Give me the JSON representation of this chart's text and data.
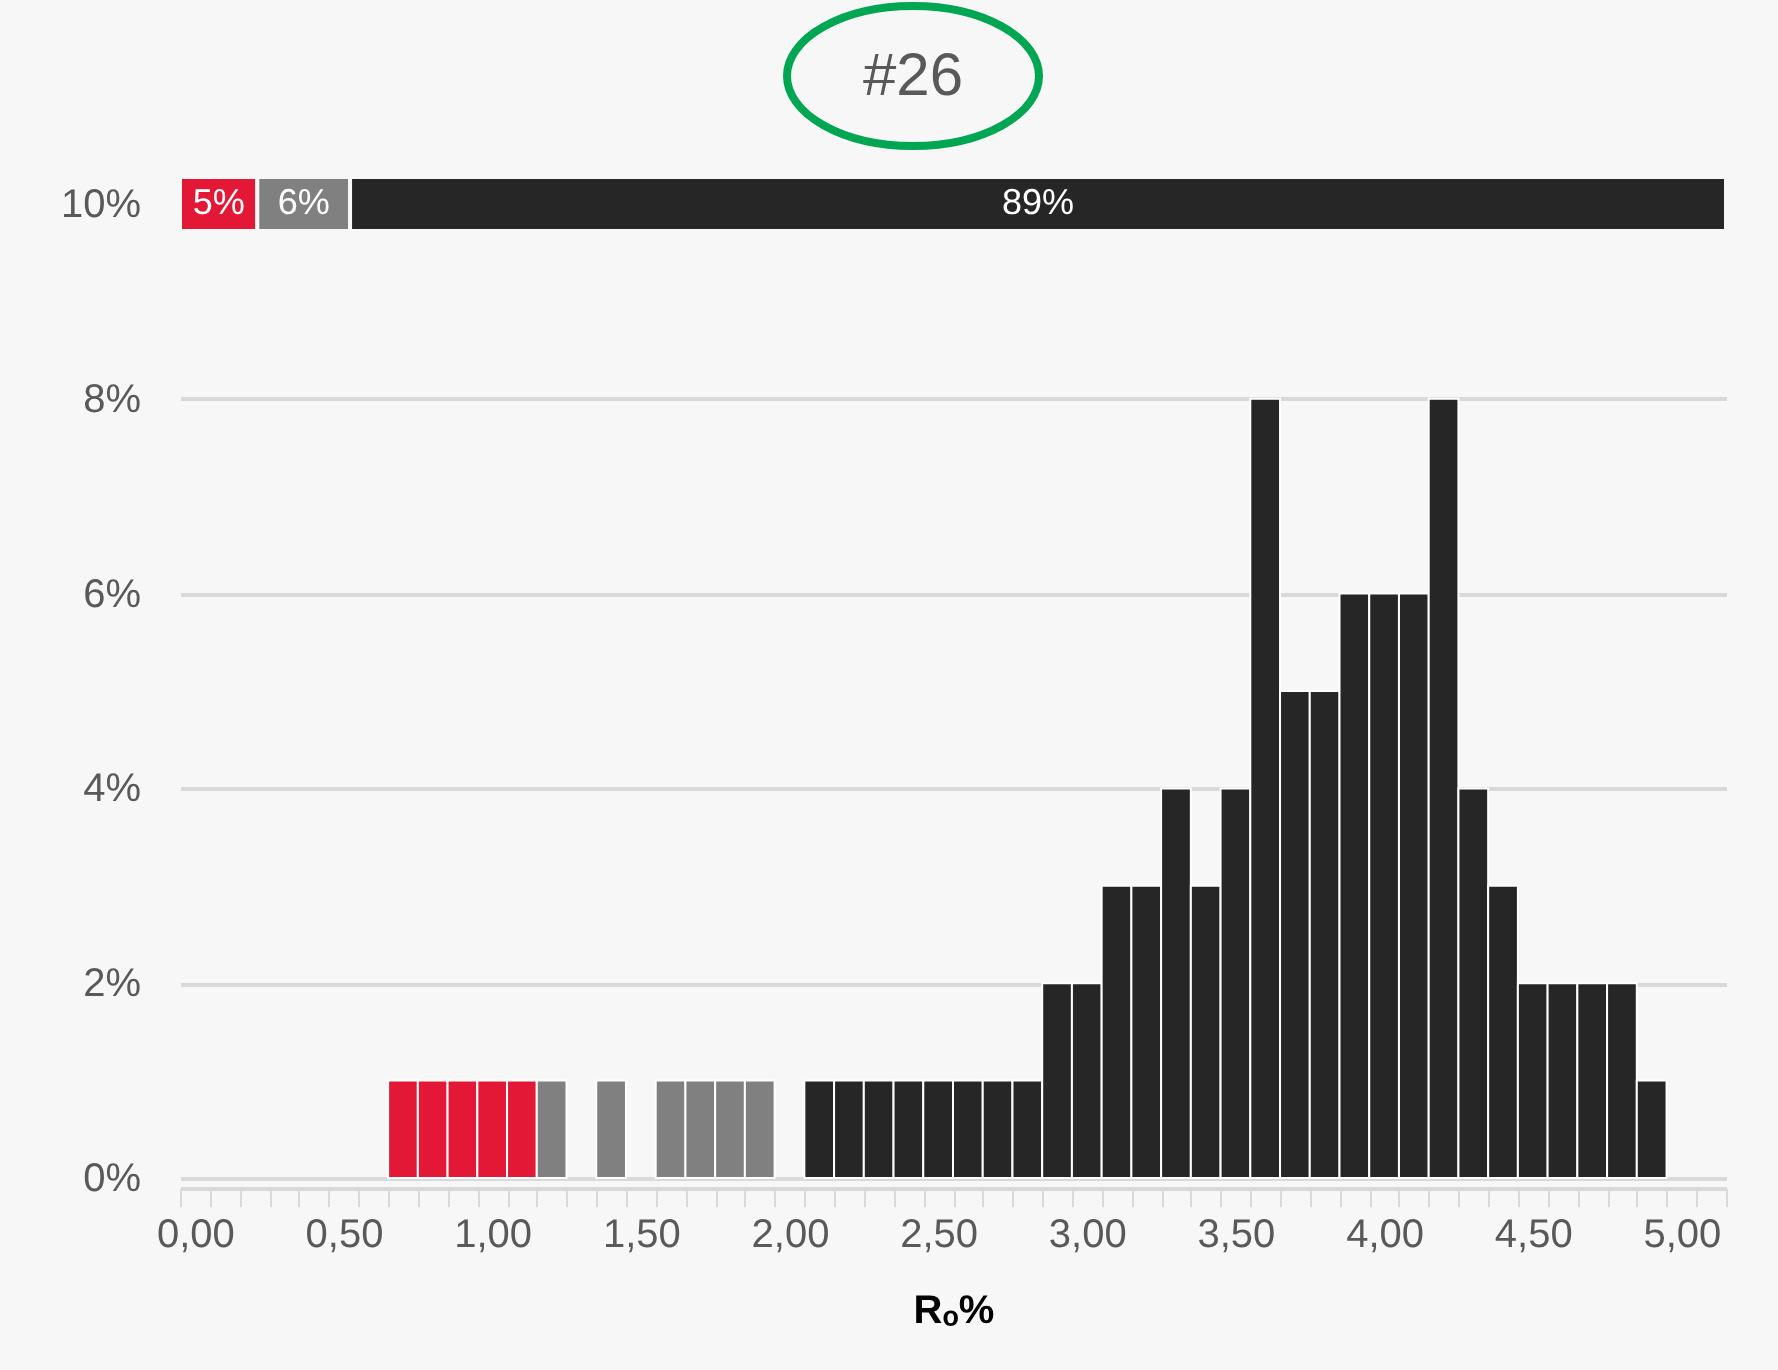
{
  "chart_data": [
    {
      "type": "bar",
      "title": "#26",
      "orientation": "horizontal",
      "stacked": true,
      "tick_labels": false,
      "series": [
        {
          "color": "#e31837",
          "values": [
            5
          ],
          "value_labels": [
            "5%"
          ]
        },
        {
          "color": "#808080",
          "values": [
            6
          ],
          "value_labels": [
            "6%"
          ]
        },
        {
          "color": "#262626",
          "values": [
            89
          ],
          "value_labels": [
            "89%"
          ]
        }
      ]
    },
    {
      "type": "bar",
      "xlabel": "Rₒ%",
      "grid": "y",
      "ylim": [
        0,
        10
      ],
      "yticks": [
        {
          "value": 0,
          "label": "0%"
        },
        {
          "value": 2,
          "label": "2%"
        },
        {
          "value": 4,
          "label": "4%"
        },
        {
          "value": 6,
          "label": "6%"
        },
        {
          "value": 8,
          "label": "8%"
        },
        {
          "value": 10,
          "label": "10%"
        }
      ],
      "categories": [
        "0,00",
        null,
        null,
        null,
        null,
        "0,50",
        null,
        null,
        null,
        null,
        "1,00",
        null,
        null,
        null,
        null,
        "1,50",
        null,
        null,
        null,
        null,
        "2,00",
        null,
        null,
        null,
        null,
        "2,50",
        null,
        null,
        null,
        null,
        "3,00",
        null,
        null,
        null,
        null,
        "3,50",
        null,
        null,
        null,
        null,
        "4,00",
        null,
        null,
        null,
        null,
        "4,50",
        null,
        null,
        null,
        null,
        "5,00",
        null
      ],
      "values": [
        0,
        0,
        0,
        0,
        0,
        0,
        0,
        1,
        1,
        1,
        1,
        1,
        1,
        0,
        1,
        0,
        1,
        1,
        1,
        1,
        0,
        1,
        1,
        1,
        1,
        1,
        1,
        1,
        1,
        2,
        2,
        3,
        3,
        4,
        3,
        4,
        8,
        5,
        5,
        6,
        6,
        6,
        8,
        4,
        3,
        2,
        2,
        2,
        2,
        1,
        0,
        0
      ],
      "colors": [
        "#262626",
        "#262626",
        "#262626",
        "#262626",
        "#262626",
        "#262626",
        "#262626",
        "#e31837",
        "#e31837",
        "#e31837",
        "#e31837",
        "#e31837",
        "#808080",
        "#808080",
        "#808080",
        "#808080",
        "#808080",
        "#808080",
        "#808080",
        "#808080",
        "#262626",
        "#262626",
        "#262626",
        "#262626",
        "#262626",
        "#262626",
        "#262626",
        "#262626",
        "#262626",
        "#262626",
        "#262626",
        "#262626",
        "#262626",
        "#262626",
        "#262626",
        "#262626",
        "#262626",
        "#262626",
        "#262626",
        "#262626",
        "#262626",
        "#262626",
        "#262626",
        "#262626",
        "#262626",
        "#262626",
        "#262626",
        "#262626",
        "#262626",
        "#262626",
        "#262626",
        "#262626"
      ]
    }
  ]
}
